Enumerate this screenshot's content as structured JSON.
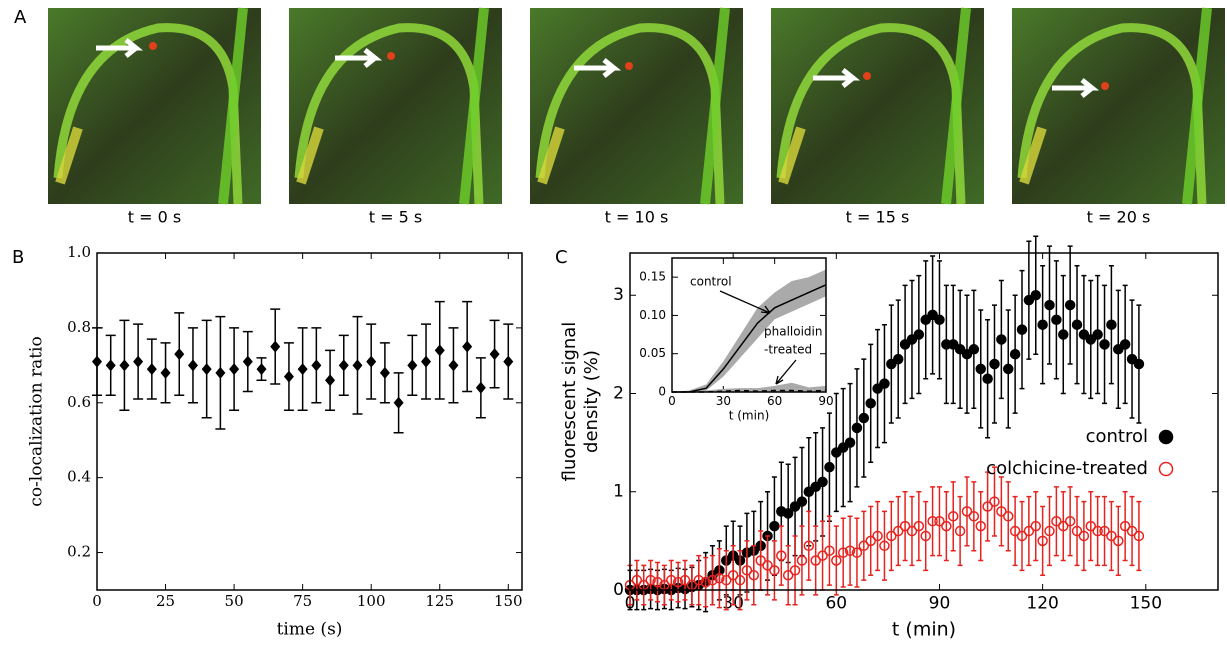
{
  "panel_a": {
    "letter": "A",
    "frames": [
      "t = 0 s",
      "t = 5 s",
      "t = 10 s",
      "t = 15 s",
      "t = 20 s"
    ]
  },
  "chart_data": [
    {
      "type": "scatter",
      "letter": "B",
      "xlabel": "time (s)",
      "ylabel": "co-localization ratio",
      "x": [
        0,
        5,
        10,
        15,
        20,
        25,
        30,
        35,
        40,
        45,
        50,
        55,
        60,
        65,
        70,
        75,
        80,
        85,
        90,
        95,
        100,
        105,
        110,
        115,
        120,
        125,
        130,
        135,
        140,
        145,
        150
      ],
      "series": [
        {
          "color": "#000000",
          "marker": "diamond",
          "filled": true,
          "values": [
            0.71,
            0.7,
            0.7,
            0.71,
            0.69,
            0.68,
            0.73,
            0.7,
            0.69,
            0.68,
            0.69,
            0.71,
            0.69,
            0.75,
            0.67,
            0.69,
            0.7,
            0.66,
            0.7,
            0.7,
            0.71,
            0.68,
            0.6,
            0.7,
            0.71,
            0.74,
            0.7,
            0.75,
            0.64,
            0.73,
            0.71
          ],
          "errors": [
            0.09,
            0.08,
            0.12,
            0.1,
            0.08,
            0.08,
            0.11,
            0.1,
            0.13,
            0.15,
            0.11,
            0.08,
            0.03,
            0.1,
            0.09,
            0.11,
            0.1,
            0.08,
            0.08,
            0.13,
            0.1,
            0.08,
            0.08,
            0.08,
            0.1,
            0.13,
            0.1,
            0.12,
            0.08,
            0.09,
            0.1
          ]
        }
      ],
      "xlim": [
        0,
        155
      ],
      "xticks": [
        0,
        25,
        50,
        75,
        100,
        125,
        150
      ],
      "ylim": [
        0.1,
        1.0
      ],
      "yticks": [
        0.2,
        0.4,
        0.6,
        0.8,
        {
          "value": 1,
          "label": "1.0"
        }
      ]
    },
    {
      "type": "scatter",
      "letter": "C",
      "xlabel": "t (min)",
      "ylabel": [
        "fluorescent signal",
        "density (%)"
      ],
      "x": [
        0,
        2,
        4,
        6,
        8,
        10,
        12,
        14,
        16,
        18,
        20,
        22,
        24,
        26,
        28,
        30,
        32,
        34,
        36,
        38,
        40,
        42,
        44,
        46,
        48,
        50,
        52,
        54,
        56,
        58,
        60,
        62,
        64,
        66,
        68,
        70,
        72,
        74,
        76,
        78,
        80,
        82,
        84,
        86,
        88,
        90,
        92,
        94,
        96,
        98,
        100,
        102,
        104,
        106,
        108,
        110,
        112,
        114,
        116,
        118,
        120,
        122,
        124,
        126,
        128,
        130,
        132,
        134,
        136,
        138,
        140,
        142,
        144,
        146,
        148
      ],
      "series": [
        {
          "name": "control",
          "color": "#000000",
          "marker": "circle",
          "filled": true,
          "values": [
            0,
            0,
            0,
            0.01,
            0,
            0.01,
            0,
            0.02,
            0.01,
            0.03,
            0.05,
            0.08,
            0.15,
            0.2,
            0.3,
            0.35,
            0.3,
            0.38,
            0.4,
            0.45,
            0.55,
            0.65,
            0.8,
            0.78,
            0.85,
            0.9,
            1.0,
            1.05,
            1.1,
            1.25,
            1.4,
            1.45,
            1.5,
            1.65,
            1.75,
            1.9,
            2.05,
            2.1,
            2.3,
            2.35,
            2.5,
            2.55,
            2.6,
            2.75,
            2.8,
            2.75,
            2.5,
            2.5,
            2.45,
            2.4,
            2.45,
            2.25,
            2.15,
            2.3,
            2.55,
            2.25,
            2.4,
            2.65,
            2.95,
            3.0,
            2.7,
            2.9,
            2.75,
            2.6,
            2.9,
            2.7,
            2.6,
            2.55,
            2.6,
            2.5,
            2.7,
            2.45,
            2.5,
            2.35,
            2.3
          ],
          "errors": [
            0.2,
            0.2,
            0.2,
            0.2,
            0.2,
            0.2,
            0.2,
            0.2,
            0.2,
            0.2,
            0.25,
            0.3,
            0.3,
            0.3,
            0.35,
            0.35,
            0.35,
            0.4,
            0.4,
            0.45,
            0.45,
            0.5,
            0.5,
            0.5,
            0.5,
            0.55,
            0.55,
            0.55,
            0.55,
            0.55,
            0.6,
            0.6,
            0.6,
            0.6,
            0.6,
            0.6,
            0.6,
            0.6,
            0.6,
            0.6,
            0.6,
            0.6,
            0.6,
            0.6,
            0.6,
            0.6,
            0.6,
            0.6,
            0.6,
            0.6,
            0.6,
            0.6,
            0.6,
            0.6,
            0.6,
            0.6,
            0.6,
            0.6,
            0.6,
            0.6,
            0.6,
            0.6,
            0.6,
            0.6,
            0.6,
            0.6,
            0.6,
            0.6,
            0.6,
            0.6,
            0.6,
            0.6,
            0.6,
            0.6,
            0.6
          ]
        },
        {
          "name": "colchicine-treated",
          "color": "#e8231f",
          "marker": "circle",
          "filled": false,
          "values": [
            0.05,
            0.1,
            0.05,
            0.1,
            0.08,
            0.05,
            0.1,
            0.08,
            0.1,
            0.05,
            0.1,
            0.08,
            0.1,
            0.12,
            0.1,
            0.15,
            0.1,
            0.2,
            0.15,
            0.3,
            0.25,
            0.2,
            0.35,
            0.15,
            0.2,
            0.3,
            0.45,
            0.3,
            0.35,
            0.4,
            0.3,
            0.38,
            0.4,
            0.38,
            0.45,
            0.5,
            0.55,
            0.45,
            0.55,
            0.6,
            0.65,
            0.6,
            0.65,
            0.55,
            0.7,
            0.7,
            0.65,
            0.75,
            0.6,
            0.8,
            0.75,
            0.65,
            0.85,
            0.9,
            0.8,
            0.75,
            0.6,
            0.55,
            0.6,
            0.65,
            0.5,
            0.6,
            0.7,
            0.65,
            0.7,
            0.6,
            0.55,
            0.65,
            0.6,
            0.6,
            0.55,
            0.5,
            0.65,
            0.6,
            0.55
          ],
          "errors": [
            0.2,
            0.2,
            0.2,
            0.2,
            0.2,
            0.2,
            0.2,
            0.2,
            0.2,
            0.2,
            0.25,
            0.25,
            0.25,
            0.3,
            0.3,
            0.3,
            0.3,
            0.3,
            0.3,
            0.3,
            0.3,
            0.3,
            0.3,
            0.3,
            0.35,
            0.35,
            0.35,
            0.35,
            0.35,
            0.35,
            0.35,
            0.35,
            0.35,
            0.35,
            0.35,
            0.35,
            0.35,
            0.35,
            0.35,
            0.35,
            0.35,
            0.35,
            0.35,
            0.35,
            0.35,
            0.35,
            0.35,
            0.35,
            0.35,
            0.35,
            0.35,
            0.35,
            0.35,
            0.35,
            0.35,
            0.35,
            0.35,
            0.35,
            0.35,
            0.35,
            0.35,
            0.35,
            0.35,
            0.35,
            0.35,
            0.35,
            0.35,
            0.35,
            0.35,
            0.35,
            0.35,
            0.35,
            0.35,
            0.35,
            0.35
          ]
        }
      ],
      "xlim": [
        0,
        171
      ],
      "xticks": [
        0,
        30,
        60,
        90,
        120,
        150
      ],
      "ylim": [
        0,
        3.43
      ],
      "yticks": [
        0,
        1,
        2,
        3
      ]
    },
    {
      "type": "line",
      "xlabel": "t (min)",
      "x": [
        0,
        10,
        20,
        30,
        40,
        50,
        60,
        70,
        80,
        90
      ],
      "series": [
        {
          "color": "#000000",
          "band_color": "#aaaaaa",
          "dash": false,
          "values": [
            0,
            0,
            0.005,
            0.03,
            0.06,
            0.09,
            0.11,
            0.12,
            0.13,
            0.14
          ],
          "lower": [
            0,
            0,
            0.002,
            0.02,
            0.045,
            0.07,
            0.095,
            0.105,
            0.115,
            0.125
          ],
          "upper": [
            0,
            0.002,
            0.01,
            0.04,
            0.075,
            0.11,
            0.13,
            0.145,
            0.15,
            0.16
          ]
        },
        {
          "color": "#000000",
          "band_color": "#aaaaaa",
          "dash": true,
          "values": [
            0,
            0,
            0,
            0.001,
            0.002,
            0.001,
            0.002,
            0.002,
            0.001,
            0.002
          ],
          "lower": [
            0,
            0,
            0,
            0,
            0,
            0,
            0,
            0,
            0,
            0
          ],
          "upper": [
            0,
            0.001,
            0.002,
            0.004,
            0.005,
            0.005,
            0.008,
            0.012,
            0.006,
            0.008
          ]
        }
      ],
      "annotations": [
        "control",
        "phalloidin",
        "-treated"
      ],
      "xlim": [
        0,
        90
      ],
      "xticks": [
        0,
        30,
        60,
        90
      ],
      "ylim": [
        0,
        0.175
      ],
      "yticks": [
        0,
        0.05,
        {
          "value": 0.1,
          "label": "0.10"
        },
        0.15
      ]
    }
  ]
}
